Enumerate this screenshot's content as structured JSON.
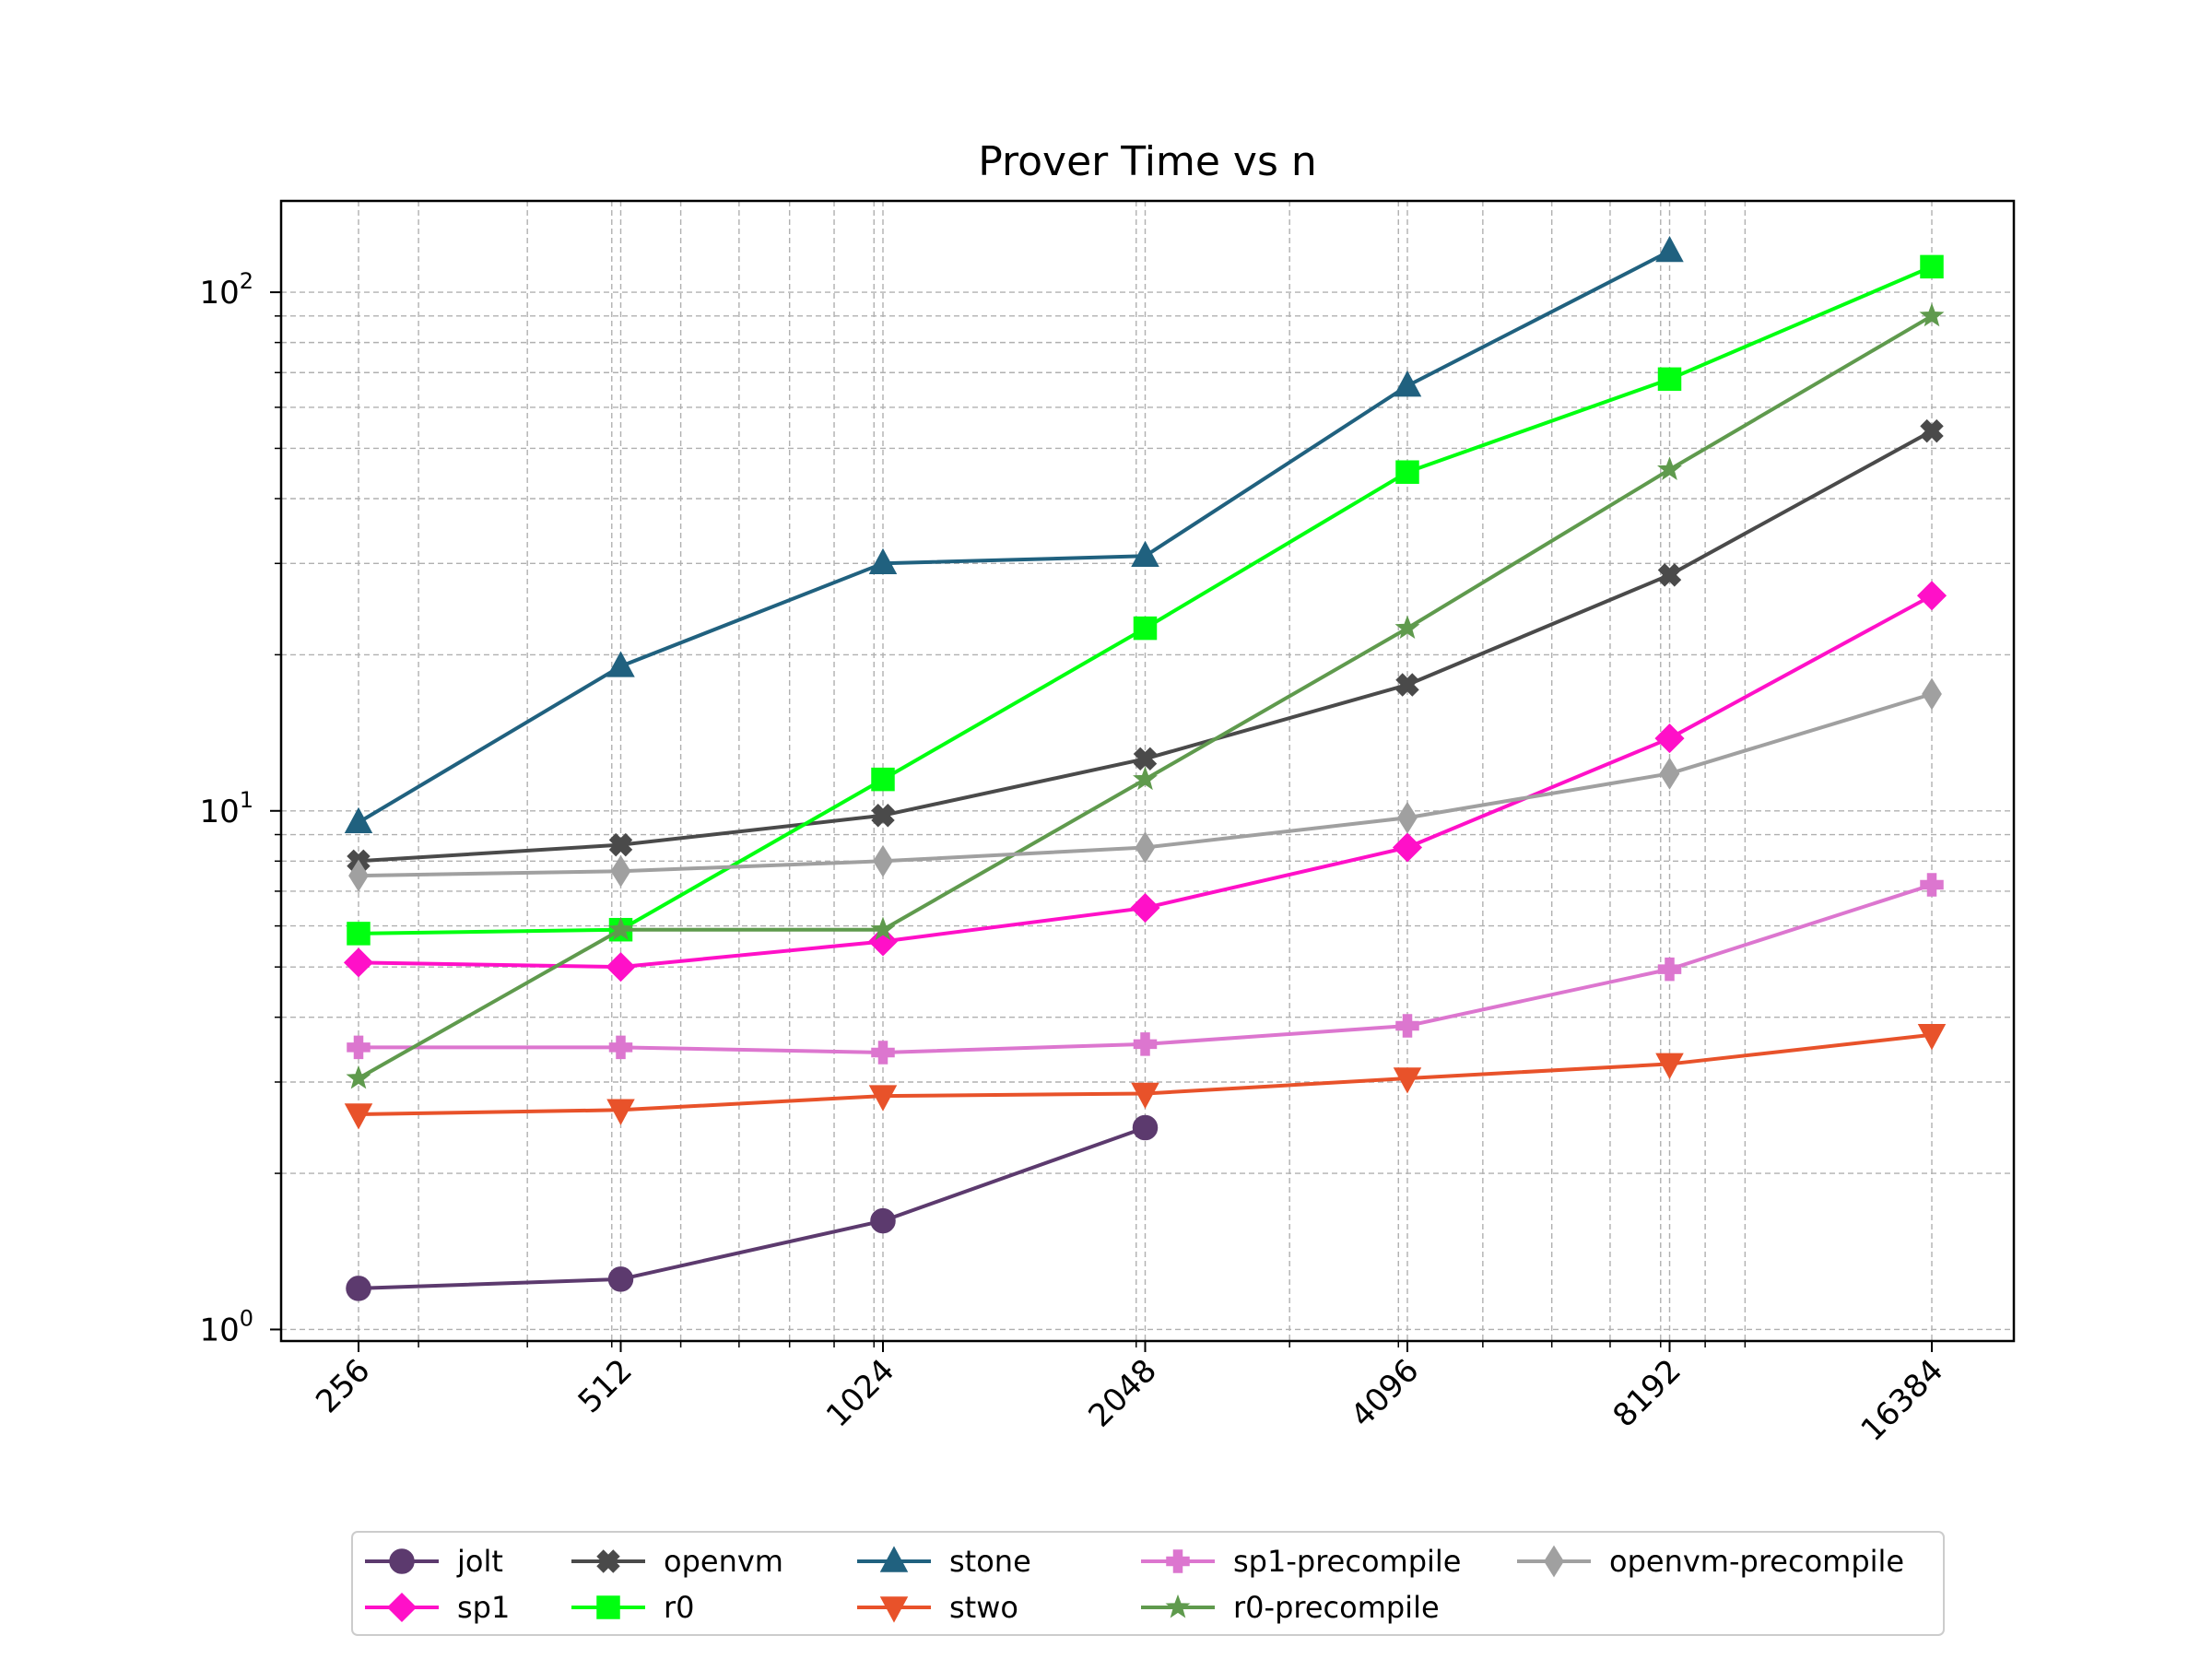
{
  "chart_data": {
    "type": "line",
    "title": "Prover Time vs n",
    "xlabel": "",
    "ylabel": "",
    "x_scale": "log2",
    "y_scale": "log10",
    "x": [
      256,
      512,
      1024,
      2048,
      4096,
      8192,
      16384
    ],
    "x_tick_labels": [
      "256",
      "512",
      "1024",
      "2048",
      "4096",
      "8192",
      "16384"
    ],
    "y_ticks": [
      {
        "value": 1,
        "base": "10",
        "exp": "0"
      },
      {
        "value": 10,
        "base": "10",
        "exp": "1"
      },
      {
        "value": 100,
        "base": "10",
        "exp": "2"
      }
    ],
    "ylim": [
      0.95,
      150
    ],
    "grid": true,
    "legend_position": "bottom-center",
    "series": [
      {
        "name": "jolt",
        "color": "#5c3a6e",
        "marker": "circle",
        "values": [
          1.2,
          1.25,
          1.62,
          2.45,
          null,
          null,
          null
        ]
      },
      {
        "name": "sp1",
        "color": "#ff10c8",
        "marker": "diamond",
        "values": [
          5.1,
          5.0,
          5.6,
          6.5,
          8.5,
          13.8,
          26.0
        ]
      },
      {
        "name": "openvm",
        "color": "#4a4a4a",
        "marker": "x-filled",
        "values": [
          8.0,
          8.6,
          9.8,
          12.6,
          17.5,
          28.5,
          54.0
        ]
      },
      {
        "name": "r0",
        "color": "#00ff10",
        "marker": "square",
        "values": [
          5.8,
          5.9,
          11.5,
          22.5,
          45.0,
          68.0,
          112.0
        ]
      },
      {
        "name": "stone",
        "color": "#20617f",
        "marker": "triangle-up",
        "values": [
          9.5,
          19.0,
          30.0,
          31.0,
          66.0,
          120.0,
          null
        ]
      },
      {
        "name": "stwo",
        "color": "#e8522a",
        "marker": "triangle-down",
        "values": [
          2.6,
          2.65,
          2.82,
          2.85,
          3.05,
          3.25,
          3.7
        ]
      },
      {
        "name": "sp1-precompile",
        "color": "#dc76cf",
        "marker": "plus-filled",
        "values": [
          3.5,
          3.5,
          3.42,
          3.55,
          3.85,
          4.95,
          7.2
        ]
      },
      {
        "name": "r0-precompile",
        "color": "#5f9a4d",
        "marker": "star",
        "values": [
          3.05,
          5.9,
          5.9,
          11.5,
          22.5,
          45.5,
          90.0
        ]
      },
      {
        "name": "openvm-precompile",
        "color": "#a0a0a0",
        "marker": "thin-diamond",
        "values": [
          7.5,
          7.65,
          8.0,
          8.5,
          9.7,
          11.8,
          16.8
        ]
      }
    ]
  }
}
